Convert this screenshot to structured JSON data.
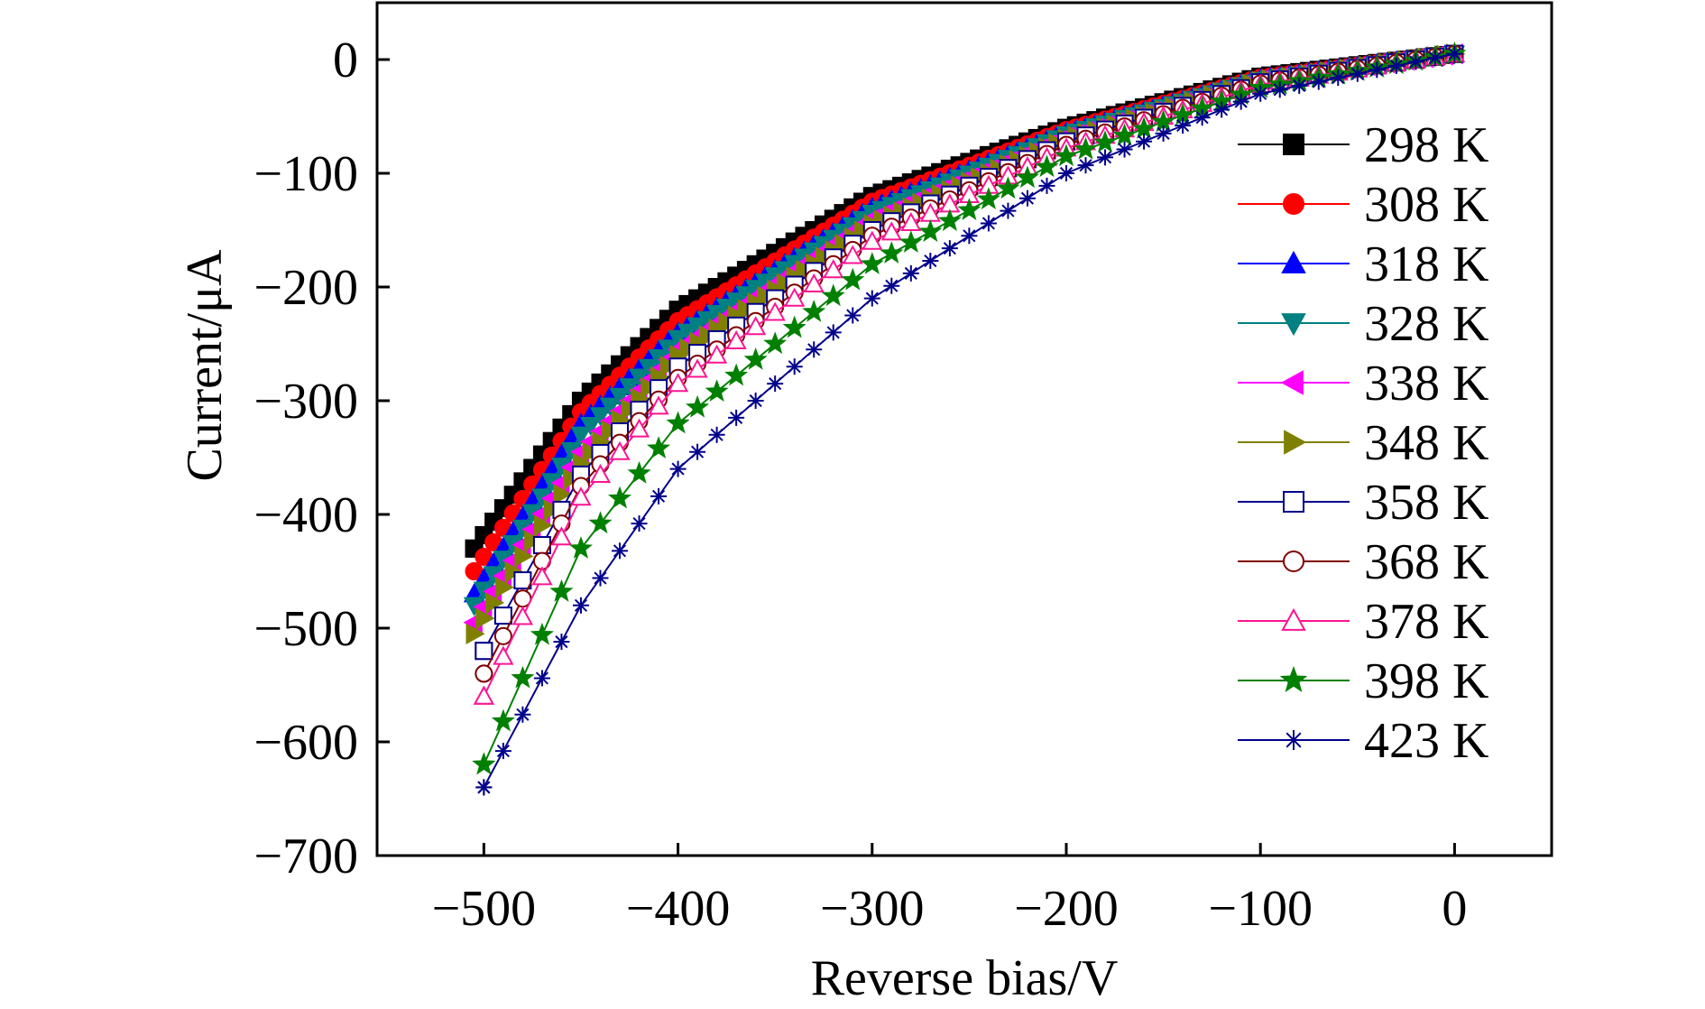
{
  "chart_data": {
    "type": "line",
    "title": "",
    "xlabel": "Reverse bias/V",
    "ylabel": "Current/μA",
    "xlim": [
      -555,
      50
    ],
    "ylim": [
      -700,
      50
    ],
    "xticks": [
      -500,
      -400,
      -300,
      -200,
      -100,
      0
    ],
    "yticks": [
      0,
      -100,
      -200,
      -300,
      -400,
      -500,
      -600,
      -700
    ],
    "grid": false,
    "legend_position": "right",
    "series": [
      {
        "name": "298 K",
        "color": "#000000",
        "marker": "filled-square",
        "x": [
          0,
          -100,
          -200,
          -300,
          -400,
          -450,
          -505
        ],
        "y": [
          5,
          -15,
          -60,
          -120,
          -220,
          -300,
          -430
        ]
      },
      {
        "name": "308 K",
        "color": "#ff0000",
        "marker": "filled-circle",
        "x": [
          0,
          -100,
          -200,
          -300,
          -400,
          -450,
          -505
        ],
        "y": [
          5,
          -16,
          -62,
          -125,
          -230,
          -310,
          -450
        ]
      },
      {
        "name": "318 K",
        "color": "#0000ff",
        "marker": "filled-triangle-up",
        "x": [
          0,
          -100,
          -200,
          -300,
          -400,
          -450,
          -505
        ],
        "y": [
          5,
          -17,
          -64,
          -130,
          -240,
          -320,
          -470
        ]
      },
      {
        "name": "328 K",
        "color": "#008080",
        "marker": "filled-triangle-down",
        "x": [
          0,
          -100,
          -200,
          -300,
          -400,
          -450,
          -505
        ],
        "y": [
          5,
          -18,
          -66,
          -135,
          -245,
          -330,
          -480
        ]
      },
      {
        "name": "338 K",
        "color": "#ff00ff",
        "marker": "filled-triangle-left",
        "x": [
          0,
          -100,
          -200,
          -300,
          -400,
          -450,
          -505
        ],
        "y": [
          5,
          -18,
          -68,
          -140,
          -255,
          -345,
          -495
        ]
      },
      {
        "name": "348 K",
        "color": "#808000",
        "marker": "filled-triangle-right",
        "x": [
          0,
          -100,
          -200,
          -300,
          -400,
          -450,
          -505
        ],
        "y": [
          5,
          -19,
          -70,
          -145,
          -260,
          -355,
          -505
        ]
      },
      {
        "name": "358 K",
        "color": "#00008b",
        "marker": "open-square",
        "x": [
          0,
          -100,
          -200,
          -300,
          -400,
          -450,
          -500
        ],
        "y": [
          5,
          -20,
          -72,
          -150,
          -270,
          -365,
          -520
        ]
      },
      {
        "name": "368 K",
        "color": "#800000",
        "marker": "open-circle",
        "x": [
          0,
          -100,
          -200,
          -300,
          -400,
          -450,
          -500
        ],
        "y": [
          5,
          -21,
          -75,
          -155,
          -280,
          -375,
          -540
        ]
      },
      {
        "name": "378 K",
        "color": "#ff1493",
        "marker": "open-triangle-up",
        "x": [
          0,
          -100,
          -200,
          -300,
          -400,
          -450,
          -500
        ],
        "y": [
          5,
          -22,
          -78,
          -160,
          -285,
          -385,
          -560
        ]
      },
      {
        "name": "398 K",
        "color": "#008000",
        "marker": "filled-star",
        "x": [
          0,
          -100,
          -200,
          -300,
          -400,
          -450,
          -500
        ],
        "y": [
          5,
          -25,
          -85,
          -180,
          -320,
          -430,
          -620
        ]
      },
      {
        "name": "423 K",
        "color": "#00008b",
        "marker": "asterisk",
        "x": [
          0,
          -100,
          -200,
          -300,
          -400,
          -450,
          -500
        ],
        "y": [
          5,
          -30,
          -100,
          -210,
          -360,
          -480,
          -640
        ]
      }
    ]
  }
}
